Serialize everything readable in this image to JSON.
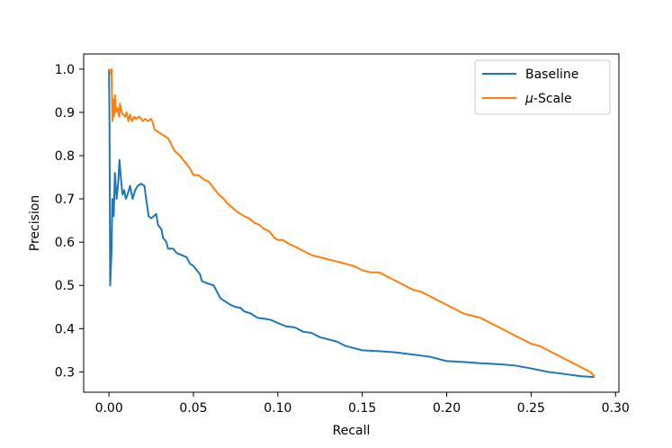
{
  "chart_data": {
    "type": "line",
    "xlabel": "Recall",
    "ylabel": "Precision",
    "xlim": [
      -0.015,
      0.302
    ],
    "ylim": [
      0.253,
      1.035
    ],
    "grid": false,
    "legend_position": "top-right",
    "x_ticks": [
      {
        "value": 0.0,
        "label": "0.00"
      },
      {
        "value": 0.05,
        "label": "0.05"
      },
      {
        "value": 0.1,
        "label": "0.10"
      },
      {
        "value": 0.15,
        "label": "0.15"
      },
      {
        "value": 0.2,
        "label": "0.20"
      },
      {
        "value": 0.25,
        "label": "0.25"
      },
      {
        "value": 0.3,
        "label": "0.30"
      }
    ],
    "y_ticks": [
      {
        "value": 0.3,
        "label": "0.3"
      },
      {
        "value": 0.4,
        "label": "0.4"
      },
      {
        "value": 0.5,
        "label": "0.5"
      },
      {
        "value": 0.6,
        "label": "0.6"
      },
      {
        "value": 0.7,
        "label": "0.7"
      },
      {
        "value": 0.8,
        "label": "0.8"
      },
      {
        "value": 0.9,
        "label": "0.9"
      },
      {
        "value": 1.0,
        "label": "1.0"
      }
    ],
    "series": [
      {
        "name": "Baseline",
        "color": "#1f77b4",
        "points": [
          [
            0.0,
            1.0
          ],
          [
            0.0003,
            0.87
          ],
          [
            0.0007,
            0.5
          ],
          [
            0.0015,
            0.58
          ],
          [
            0.002,
            0.7
          ],
          [
            0.0028,
            0.66
          ],
          [
            0.0035,
            0.76
          ],
          [
            0.0045,
            0.7
          ],
          [
            0.0055,
            0.74
          ],
          [
            0.0062,
            0.79
          ],
          [
            0.007,
            0.75
          ],
          [
            0.008,
            0.71
          ],
          [
            0.009,
            0.72
          ],
          [
            0.01,
            0.7
          ],
          [
            0.011,
            0.71
          ],
          [
            0.0125,
            0.73
          ],
          [
            0.014,
            0.7
          ],
          [
            0.0155,
            0.72
          ],
          [
            0.017,
            0.73
          ],
          [
            0.019,
            0.735
          ],
          [
            0.021,
            0.73
          ],
          [
            0.022,
            0.7
          ],
          [
            0.0235,
            0.66
          ],
          [
            0.025,
            0.655
          ],
          [
            0.0265,
            0.66
          ],
          [
            0.028,
            0.665
          ],
          [
            0.029,
            0.64
          ],
          [
            0.031,
            0.63
          ],
          [
            0.032,
            0.61
          ],
          [
            0.034,
            0.6
          ],
          [
            0.035,
            0.585
          ],
          [
            0.038,
            0.585
          ],
          [
            0.04,
            0.575
          ],
          [
            0.043,
            0.57
          ],
          [
            0.046,
            0.565
          ],
          [
            0.048,
            0.55
          ],
          [
            0.05,
            0.545
          ],
          [
            0.052,
            0.535
          ],
          [
            0.054,
            0.525
          ],
          [
            0.055,
            0.51
          ],
          [
            0.058,
            0.505
          ],
          [
            0.062,
            0.5
          ],
          [
            0.064,
            0.485
          ],
          [
            0.066,
            0.47
          ],
          [
            0.068,
            0.465
          ],
          [
            0.072,
            0.455
          ],
          [
            0.075,
            0.45
          ],
          [
            0.078,
            0.448
          ],
          [
            0.08,
            0.44
          ],
          [
            0.084,
            0.435
          ],
          [
            0.088,
            0.425
          ],
          [
            0.092,
            0.423
          ],
          [
            0.096,
            0.42
          ],
          [
            0.1,
            0.413
          ],
          [
            0.105,
            0.405
          ],
          [
            0.11,
            0.403
          ],
          [
            0.115,
            0.393
          ],
          [
            0.12,
            0.39
          ],
          [
            0.125,
            0.38
          ],
          [
            0.13,
            0.375
          ],
          [
            0.135,
            0.37
          ],
          [
            0.14,
            0.36
          ],
          [
            0.145,
            0.355
          ],
          [
            0.15,
            0.35
          ],
          [
            0.16,
            0.348
          ],
          [
            0.17,
            0.345
          ],
          [
            0.18,
            0.34
          ],
          [
            0.19,
            0.335
          ],
          [
            0.2,
            0.325
          ],
          [
            0.21,
            0.323
          ],
          [
            0.22,
            0.32
          ],
          [
            0.23,
            0.318
          ],
          [
            0.24,
            0.315
          ],
          [
            0.25,
            0.308
          ],
          [
            0.26,
            0.3
          ],
          [
            0.27,
            0.295
          ],
          [
            0.28,
            0.29
          ],
          [
            0.2875,
            0.288
          ]
        ]
      },
      {
        "name": "μ-Scale",
        "color": "#ff7f0e",
        "points": [
          [
            0.0,
            1.0
          ],
          [
            0.001,
            0.99
          ],
          [
            0.0015,
            1.0
          ],
          [
            0.002,
            0.88
          ],
          [
            0.0025,
            0.93
          ],
          [
            0.003,
            0.89
          ],
          [
            0.0035,
            0.94
          ],
          [
            0.004,
            0.9
          ],
          [
            0.005,
            0.91
          ],
          [
            0.006,
            0.89
          ],
          [
            0.0065,
            0.92
          ],
          [
            0.0075,
            0.9
          ],
          [
            0.0085,
            0.895
          ],
          [
            0.0095,
            0.89
          ],
          [
            0.0105,
            0.9
          ],
          [
            0.0115,
            0.88
          ],
          [
            0.0125,
            0.895
          ],
          [
            0.0135,
            0.88
          ],
          [
            0.015,
            0.89
          ],
          [
            0.016,
            0.885
          ],
          [
            0.018,
            0.89
          ],
          [
            0.02,
            0.88
          ],
          [
            0.0215,
            0.885
          ],
          [
            0.023,
            0.88
          ],
          [
            0.025,
            0.885
          ],
          [
            0.026,
            0.875
          ],
          [
            0.027,
            0.86
          ],
          [
            0.029,
            0.855
          ],
          [
            0.031,
            0.85
          ],
          [
            0.033,
            0.845
          ],
          [
            0.035,
            0.84
          ],
          [
            0.037,
            0.825
          ],
          [
            0.039,
            0.81
          ],
          [
            0.042,
            0.8
          ],
          [
            0.045,
            0.785
          ],
          [
            0.048,
            0.77
          ],
          [
            0.05,
            0.755
          ],
          [
            0.053,
            0.755
          ],
          [
            0.056,
            0.745
          ],
          [
            0.059,
            0.74
          ],
          [
            0.062,
            0.725
          ],
          [
            0.065,
            0.71
          ],
          [
            0.068,
            0.7
          ],
          [
            0.07,
            0.69
          ],
          [
            0.073,
            0.68
          ],
          [
            0.076,
            0.67
          ],
          [
            0.08,
            0.66
          ],
          [
            0.083,
            0.655
          ],
          [
            0.086,
            0.645
          ],
          [
            0.089,
            0.64
          ],
          [
            0.092,
            0.63
          ],
          [
            0.095,
            0.625
          ],
          [
            0.098,
            0.61
          ],
          [
            0.1,
            0.605
          ],
          [
            0.103,
            0.605
          ],
          [
            0.107,
            0.595
          ],
          [
            0.11,
            0.59
          ],
          [
            0.115,
            0.58
          ],
          [
            0.12,
            0.57
          ],
          [
            0.125,
            0.565
          ],
          [
            0.13,
            0.56
          ],
          [
            0.135,
            0.555
          ],
          [
            0.14,
            0.55
          ],
          [
            0.145,
            0.545
          ],
          [
            0.15,
            0.535
          ],
          [
            0.155,
            0.53
          ],
          [
            0.16,
            0.53
          ],
          [
            0.165,
            0.52
          ],
          [
            0.17,
            0.51
          ],
          [
            0.175,
            0.5
          ],
          [
            0.18,
            0.49
          ],
          [
            0.185,
            0.485
          ],
          [
            0.19,
            0.475
          ],
          [
            0.195,
            0.465
          ],
          [
            0.2,
            0.455
          ],
          [
            0.205,
            0.445
          ],
          [
            0.21,
            0.435
          ],
          [
            0.215,
            0.43
          ],
          [
            0.22,
            0.425
          ],
          [
            0.225,
            0.415
          ],
          [
            0.23,
            0.405
          ],
          [
            0.235,
            0.395
          ],
          [
            0.24,
            0.385
          ],
          [
            0.245,
            0.375
          ],
          [
            0.25,
            0.365
          ],
          [
            0.255,
            0.36
          ],
          [
            0.26,
            0.35
          ],
          [
            0.265,
            0.34
          ],
          [
            0.27,
            0.33
          ],
          [
            0.275,
            0.32
          ],
          [
            0.28,
            0.31
          ],
          [
            0.285,
            0.3
          ],
          [
            0.2875,
            0.29
          ]
        ]
      }
    ]
  }
}
